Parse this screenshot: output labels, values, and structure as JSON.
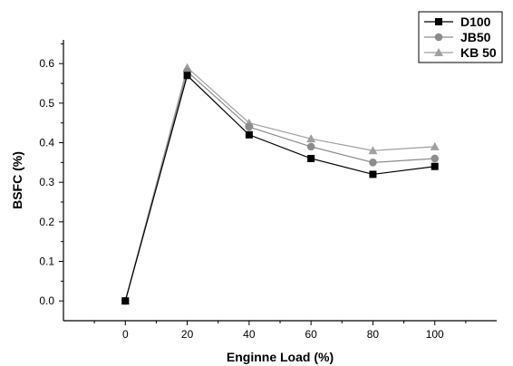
{
  "chart_data": {
    "type": "line",
    "title": "",
    "xlabel": "Enginne Load (%)",
    "ylabel": "BSFC (%)",
    "x": [
      0,
      20,
      40,
      60,
      80,
      100
    ],
    "x_ticks": [
      "0",
      "20",
      "40",
      "60",
      "80",
      "100"
    ],
    "y_ticks": [
      "0.0",
      "0.1",
      "0.2",
      "0.3",
      "0.4",
      "0.5",
      "0.6"
    ],
    "xlim": [
      -20,
      120
    ],
    "ylim": [
      -0.05,
      0.66
    ],
    "grid": false,
    "legend_position": "top-right",
    "series": [
      {
        "name": "D100",
        "marker": "square",
        "color": "#000000",
        "line_color": "#000000",
        "values": [
          0.0,
          0.57,
          0.42,
          0.36,
          0.32,
          0.34
        ]
      },
      {
        "name": "JB50",
        "marker": "circle",
        "color": "#8c8c8c",
        "line_color": "#8c8c8c",
        "values": [
          0.0,
          0.58,
          0.44,
          0.39,
          0.35,
          0.36
        ]
      },
      {
        "name": "KB 50",
        "marker": "triangle",
        "color": "#a0a0a0",
        "line_color": "#a0a0a0",
        "values": [
          0.0,
          0.59,
          0.45,
          0.41,
          0.38,
          0.39
        ]
      }
    ]
  }
}
